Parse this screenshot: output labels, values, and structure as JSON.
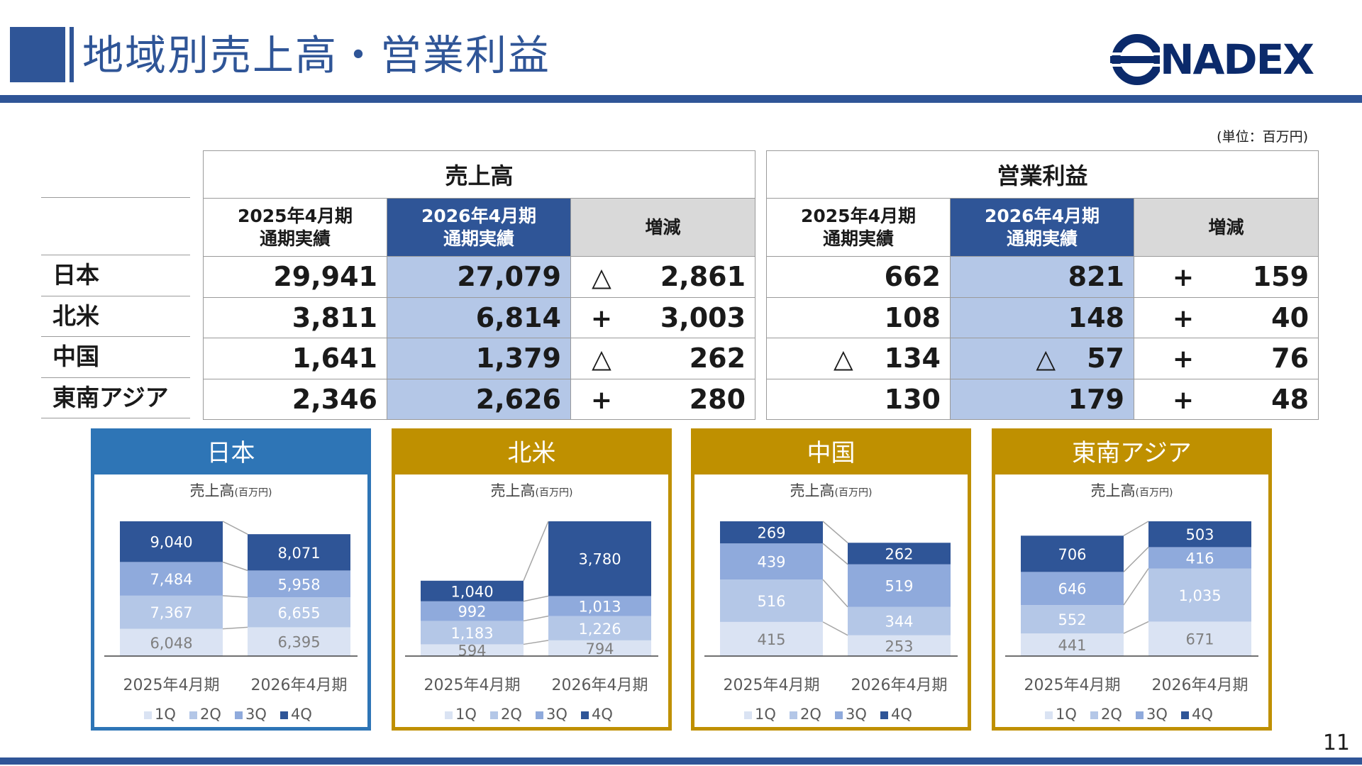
{
  "page": {
    "title": "地域別売上高・営業利益",
    "logo_text": "NADEX",
    "unit_note": "(単位：百万円)",
    "page_number": "11"
  },
  "colors": {
    "brand_blue": "#2f5597",
    "highlight_cell": "#b4c7e7",
    "delta_header": "#d9d9d9",
    "panel_japan": "#2e75b6",
    "panel_other": "#bf9000",
    "q1": "#dae3f3",
    "q2": "#b4c7e7",
    "q3": "#8faadc",
    "q4": "#2f5597"
  },
  "table": {
    "sales": {
      "title": "売上高",
      "col_prev": "2025年4月期\n通期実績",
      "col_curr": "2026年4月期\n通期実績",
      "col_delta": "増減",
      "rows": [
        {
          "region": "日本",
          "prev": "29,941",
          "curr": "27,079",
          "delta_sign": "△",
          "delta": "2,861"
        },
        {
          "region": "北米",
          "prev": "3,811",
          "curr": "6,814",
          "delta_sign": "+",
          "delta": "3,003"
        },
        {
          "region": "中国",
          "prev": "1,641",
          "curr": "1,379",
          "delta_sign": "△",
          "delta": "262"
        },
        {
          "region": "東南アジア",
          "prev": "2,346",
          "curr": "2,626",
          "delta_sign": "+",
          "delta": "280"
        }
      ]
    },
    "op_income": {
      "title": "営業利益",
      "col_prev": "2025年4月期\n通期実績",
      "col_curr": "2026年4月期\n通期実績",
      "col_delta": "増減",
      "rows": [
        {
          "prev_sign": "",
          "prev": "662",
          "curr_sign": "",
          "curr": "821",
          "delta_sign": "+",
          "delta": "159"
        },
        {
          "prev_sign": "",
          "prev": "108",
          "curr_sign": "",
          "curr": "148",
          "delta_sign": "+",
          "delta": "40"
        },
        {
          "prev_sign": "△",
          "prev": "134",
          "curr_sign": "△",
          "curr": "57",
          "delta_sign": "+",
          "delta": "76"
        },
        {
          "prev_sign": "",
          "prev": "130",
          "curr_sign": "",
          "curr": "179",
          "delta_sign": "+",
          "delta": "48"
        }
      ]
    }
  },
  "chart_data": [
    {
      "type": "bar",
      "stacked": true,
      "panel_title": "日本",
      "title": "売上高",
      "title_unit": "(百万円)",
      "categories": [
        "2025年4月期",
        "2026年4月期"
      ],
      "series": [
        {
          "name": "1Q",
          "values": [
            6048,
            6395
          ]
        },
        {
          "name": "2Q",
          "values": [
            7367,
            6655
          ]
        },
        {
          "name": "3Q",
          "values": [
            7484,
            5958
          ]
        },
        {
          "name": "4Q",
          "values": [
            9040,
            8071
          ]
        }
      ],
      "legend": "bottom"
    },
    {
      "type": "bar",
      "stacked": true,
      "panel_title": "北米",
      "title": "売上高",
      "title_unit": "(百万円)",
      "categories": [
        "2025年4月期",
        "2026年4月期"
      ],
      "series": [
        {
          "name": "1Q",
          "values": [
            594,
            794
          ]
        },
        {
          "name": "2Q",
          "values": [
            1183,
            1226
          ]
        },
        {
          "name": "3Q",
          "values": [
            992,
            1013
          ]
        },
        {
          "name": "4Q",
          "values": [
            1040,
            3780
          ]
        }
      ],
      "legend": "bottom"
    },
    {
      "type": "bar",
      "stacked": true,
      "panel_title": "中国",
      "title": "売上高",
      "title_unit": "(百万円)",
      "categories": [
        "2025年4月期",
        "2026年4月期"
      ],
      "series": [
        {
          "name": "1Q",
          "values": [
            415,
            253
          ]
        },
        {
          "name": "2Q",
          "values": [
            516,
            344
          ]
        },
        {
          "name": "3Q",
          "values": [
            439,
            519
          ]
        },
        {
          "name": "4Q",
          "values": [
            269,
            262
          ]
        }
      ],
      "legend": "bottom"
    },
    {
      "type": "bar",
      "stacked": true,
      "panel_title": "東南アジア",
      "title": "売上高",
      "title_unit": "(百万円)",
      "categories": [
        "2025年4月期",
        "2026年4月期"
      ],
      "series": [
        {
          "name": "1Q",
          "values": [
            441,
            671
          ]
        },
        {
          "name": "2Q",
          "values": [
            552,
            1035
          ]
        },
        {
          "name": "3Q",
          "values": [
            646,
            416
          ]
        },
        {
          "name": "4Q",
          "values": [
            706,
            503
          ]
        }
      ],
      "legend": "bottom"
    }
  ]
}
